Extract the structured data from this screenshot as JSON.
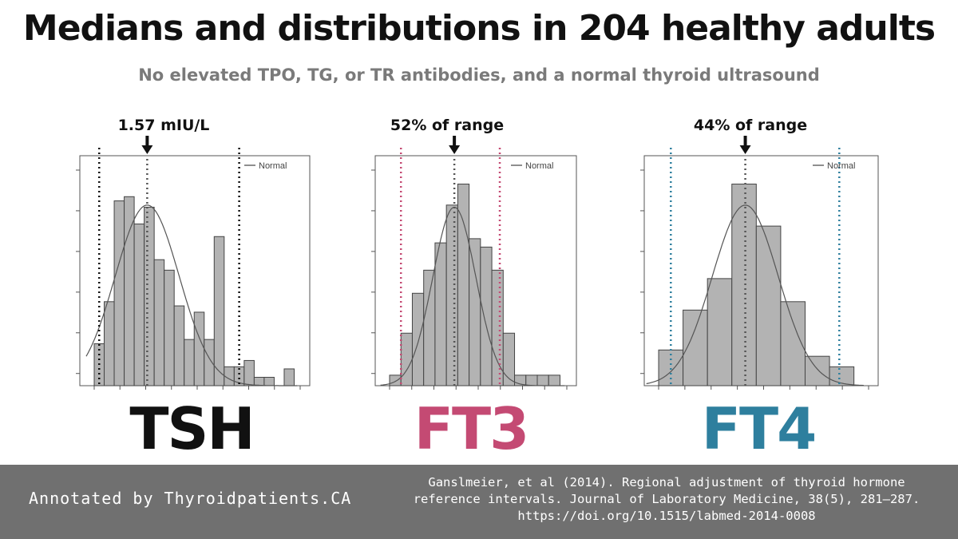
{
  "header": {
    "title": "Medians and distributions in 204 healthy adults",
    "subtitle": "No elevated TPO, TG, or TR antibodies, and a normal thyroid ultrasound"
  },
  "footer": {
    "attribution": "Annotated by Thyroidpatients.CA",
    "citation": "Ganslmeier, et al (2014). Regional adjustment of thyroid hormone reference intervals. Journal of Laboratory Medicine, 38(5), 281–287. https://doi.org/10.1515/labmed-2014-0008"
  },
  "chart_data": [
    {
      "type": "bar",
      "name": "TSH",
      "label": "TSH",
      "label_color": "#111111",
      "annotation": "1.57 mIU/L",
      "legend": "Normal",
      "legend_position": "top-right",
      "grid": false,
      "bin_values": [
        0.2,
        0.4,
        0.88,
        0.9,
        0.77,
        0.85,
        0.6,
        0.55,
        0.38,
        0.22,
        0.35,
        0.22,
        0.71,
        0.09,
        0.09,
        0.12,
        0.04,
        0.04,
        0.0,
        0.08
      ],
      "ylim": [
        0,
        1
      ],
      "reference_lines": {
        "median_bin": 5.3,
        "lower_bin": 0.5,
        "upper_bin": 14.5,
        "color": "#111111"
      },
      "normal_curve": {
        "mean_bin": 5.3,
        "sd_bins": 3.2,
        "peak": 0.86
      }
    },
    {
      "type": "bar",
      "name": "FT3",
      "label": "FT3",
      "label_color": "#c44a73",
      "annotation": "52% of range",
      "legend": "Normal",
      "legend_position": "top-right",
      "grid": false,
      "bin_values": [
        0.05,
        0.25,
        0.44,
        0.55,
        0.68,
        0.86,
        0.96,
        0.7,
        0.66,
        0.55,
        0.25,
        0.05,
        0.05,
        0.05,
        0.05
      ],
      "ylim": [
        0,
        1
      ],
      "reference_lines": {
        "median_bin": 5.7,
        "lower_bin": 1.0,
        "upper_bin": 9.7,
        "color": "#c44a73"
      },
      "normal_curve": {
        "mean_bin": 5.7,
        "sd_bins": 1.9,
        "peak": 0.85
      }
    },
    {
      "type": "bar",
      "name": "FT4",
      "label": "FT4",
      "label_color": "#2e7f9e",
      "annotation": "44% of range",
      "legend": "Normal",
      "legend_position": "top-right",
      "grid": false,
      "bin_values": [
        0.17,
        0.36,
        0.51,
        0.96,
        0.76,
        0.4,
        0.14,
        0.09
      ],
      "ylim": [
        0,
        1
      ],
      "reference_lines": {
        "median_bin": 3.55,
        "lower_bin": 0.5,
        "upper_bin": 7.4,
        "color": "#2e7f9e"
      },
      "normal_curve": {
        "mean_bin": 3.55,
        "sd_bins": 1.35,
        "peak": 0.86
      }
    }
  ]
}
